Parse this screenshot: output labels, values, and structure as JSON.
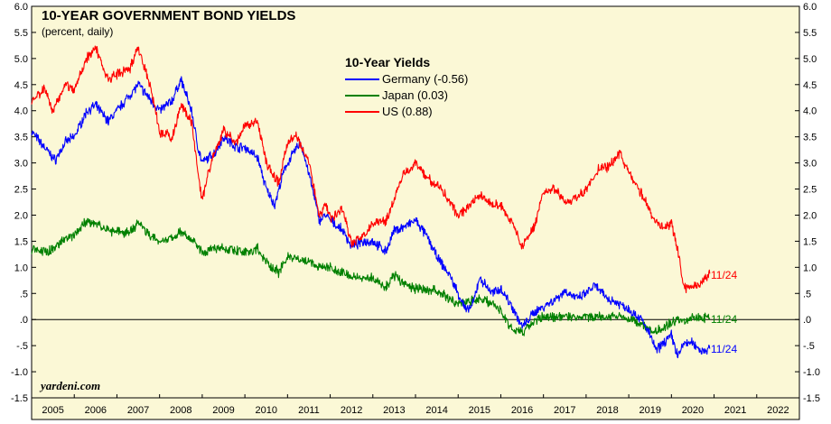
{
  "chart_data": {
    "type": "line",
    "title": "10-YEAR GOVERNMENT BOND YIELDS",
    "subtitle": "(percent, daily)",
    "legend_title": "10-Year Yields",
    "legend_position": "top-center",
    "source": "yardeni.com",
    "xlabel": "",
    "ylabel": "",
    "x_range": [
      2005,
      2023
    ],
    "ylim": [
      -1.5,
      6.0
    ],
    "y_ticks": [
      "6.0",
      "5.5",
      "5.0",
      "4.5",
      "4.0",
      "3.5",
      "3.0",
      "2.5",
      "2.0",
      "1.5",
      "1.0",
      ".5",
      ".0",
      "-.5",
      "-1.0",
      "-1.5"
    ],
    "x_ticks": [
      "2005",
      "2006",
      "2007",
      "2008",
      "2009",
      "2010",
      "2011",
      "2012",
      "2013",
      "2014",
      "2015",
      "2016",
      "2017",
      "2018",
      "2019",
      "2020",
      "2021",
      "2022"
    ],
    "background_color": "#fbf8d6",
    "zero_line": 0,
    "series": [
      {
        "name": "Germany",
        "legend_label": "Germany (-0.56)",
        "color": "#0000ff",
        "end_label": "11/24",
        "x": [
          2005.0,
          2005.3,
          2005.55,
          2005.8,
          2006.0,
          2006.3,
          2006.5,
          2006.8,
          2007.0,
          2007.3,
          2007.5,
          2007.8,
          2008.0,
          2008.3,
          2008.5,
          2008.75,
          2008.9,
          2009.0,
          2009.3,
          2009.5,
          2009.8,
          2010.0,
          2010.3,
          2010.5,
          2010.7,
          2010.9,
          2011.0,
          2011.3,
          2011.5,
          2011.75,
          2011.9,
          2012.0,
          2012.3,
          2012.5,
          2012.8,
          2013.0,
          2013.3,
          2013.5,
          2013.8,
          2014.0,
          2014.3,
          2014.5,
          2014.8,
          2015.0,
          2015.2,
          2015.35,
          2015.5,
          2015.8,
          2016.0,
          2016.3,
          2016.5,
          2016.8,
          2017.0,
          2017.3,
          2017.5,
          2017.8,
          2018.0,
          2018.2,
          2018.5,
          2018.8,
          2019.0,
          2019.3,
          2019.5,
          2019.65,
          2019.8,
          2020.0,
          2020.15,
          2020.3,
          2020.5,
          2020.7,
          2020.9
        ],
        "values": [
          3.6,
          3.3,
          3.05,
          3.4,
          3.5,
          4.0,
          4.1,
          3.8,
          4.0,
          4.3,
          4.5,
          4.2,
          4.0,
          4.2,
          4.6,
          4.0,
          3.3,
          3.0,
          3.2,
          3.5,
          3.3,
          3.3,
          3.1,
          2.5,
          2.2,
          2.8,
          3.0,
          3.4,
          2.8,
          1.9,
          2.0,
          1.9,
          1.7,
          1.4,
          1.5,
          1.5,
          1.3,
          1.7,
          1.8,
          1.9,
          1.55,
          1.2,
          0.85,
          0.5,
          0.15,
          0.3,
          0.8,
          0.5,
          0.6,
          0.2,
          -0.15,
          0.15,
          0.25,
          0.4,
          0.55,
          0.4,
          0.5,
          0.65,
          0.4,
          0.3,
          0.2,
          0.0,
          -0.3,
          -0.6,
          -0.45,
          -0.3,
          -0.7,
          -0.45,
          -0.45,
          -0.6,
          -0.56
        ]
      },
      {
        "name": "Japan",
        "legend_label": "Japan (0.03)",
        "color": "#008000",
        "end_label": "11/24",
        "x": [
          2005.0,
          2005.3,
          2005.5,
          2005.8,
          2006.0,
          2006.3,
          2006.5,
          2006.8,
          2007.0,
          2007.3,
          2007.5,
          2007.8,
          2008.0,
          2008.3,
          2008.5,
          2008.8,
          2009.0,
          2009.5,
          2010.0,
          2010.3,
          2010.5,
          2010.8,
          2011.0,
          2011.5,
          2011.8,
          2012.0,
          2012.5,
          2013.0,
          2013.3,
          2013.5,
          2013.8,
          2014.0,
          2014.5,
          2015.0,
          2015.3,
          2015.5,
          2015.8,
          2016.0,
          2016.1,
          2016.3,
          2016.5,
          2016.8,
          2017.0,
          2017.5,
          2018.0,
          2018.5,
          2018.8,
          2019.0,
          2019.3,
          2019.6,
          2019.8,
          2020.0,
          2020.3,
          2020.6,
          2020.9
        ],
        "values": [
          1.35,
          1.3,
          1.35,
          1.55,
          1.6,
          1.9,
          1.85,
          1.7,
          1.7,
          1.65,
          1.85,
          1.6,
          1.5,
          1.55,
          1.7,
          1.5,
          1.3,
          1.35,
          1.3,
          1.35,
          1.1,
          0.9,
          1.2,
          1.1,
          1.0,
          1.0,
          0.8,
          0.8,
          0.6,
          0.85,
          0.65,
          0.6,
          0.55,
          0.3,
          0.35,
          0.4,
          0.3,
          0.2,
          0.0,
          -0.2,
          -0.25,
          0.0,
          0.05,
          0.05,
          0.05,
          0.05,
          0.1,
          0.0,
          -0.1,
          -0.25,
          -0.15,
          -0.05,
          0.0,
          0.03,
          0.03
        ]
      },
      {
        "name": "US",
        "legend_label": "US (0.88)",
        "color": "#ff0000",
        "end_label": "11/24",
        "x": [
          2005.0,
          2005.3,
          2005.5,
          2005.8,
          2006.0,
          2006.3,
          2006.5,
          2006.8,
          2007.0,
          2007.3,
          2007.5,
          2007.8,
          2008.0,
          2008.3,
          2008.5,
          2008.75,
          2008.95,
          2009.0,
          2009.2,
          2009.5,
          2009.8,
          2010.0,
          2010.3,
          2010.5,
          2010.8,
          2011.0,
          2011.2,
          2011.5,
          2011.75,
          2011.9,
          2012.0,
          2012.3,
          2012.5,
          2012.8,
          2013.0,
          2013.3,
          2013.45,
          2013.7,
          2014.0,
          2014.3,
          2014.6,
          2015.0,
          2015.3,
          2015.5,
          2015.8,
          2016.0,
          2016.3,
          2016.5,
          2016.8,
          2017.0,
          2017.3,
          2017.5,
          2017.8,
          2018.0,
          2018.3,
          2018.5,
          2018.8,
          2019.0,
          2019.3,
          2019.6,
          2019.8,
          2020.0,
          2020.15,
          2020.3,
          2020.6,
          2020.9
        ],
        "values": [
          4.2,
          4.4,
          4.0,
          4.5,
          4.4,
          5.0,
          5.2,
          4.6,
          4.7,
          4.8,
          5.2,
          4.4,
          3.6,
          3.5,
          4.1,
          3.8,
          2.5,
          2.3,
          3.0,
          3.6,
          3.4,
          3.7,
          3.8,
          3.0,
          2.6,
          3.4,
          3.5,
          3.0,
          2.0,
          2.2,
          1.95,
          2.1,
          1.45,
          1.6,
          1.85,
          1.9,
          2.2,
          2.75,
          3.0,
          2.7,
          2.5,
          2.0,
          2.2,
          2.4,
          2.2,
          2.2,
          1.8,
          1.4,
          1.8,
          2.45,
          2.5,
          2.2,
          2.35,
          2.5,
          2.9,
          2.9,
          3.2,
          2.8,
          2.4,
          1.9,
          1.75,
          1.85,
          1.3,
          0.6,
          0.65,
          0.88
        ]
      }
    ]
  }
}
